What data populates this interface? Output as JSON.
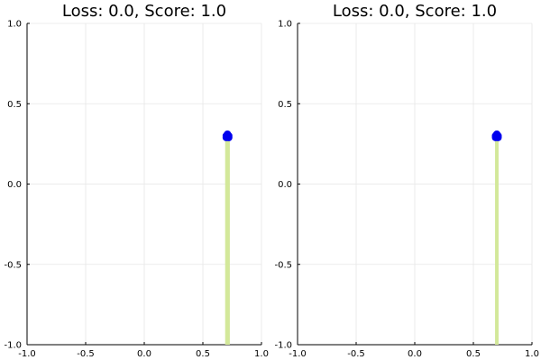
{
  "chart_data": [
    {
      "type": "scatter",
      "title": "Loss: 0.0, Score: 1.0",
      "xlim": [
        -1.0,
        1.0
      ],
      "ylim": [
        -1.0,
        1.0
      ],
      "xticks": [
        "-1.0",
        "-0.5",
        "0.0",
        "0.5",
        "1.0"
      ],
      "yticks": [
        "-1.0",
        "-0.5",
        "0.0",
        "0.5",
        "1.0"
      ],
      "grid": true,
      "bar": {
        "x": 0.71,
        "width": 0.04,
        "from": -1.0,
        "to": 0.3,
        "color": "#d3e89a"
      },
      "points": [
        {
          "x": 0.7,
          "y": 0.3
        },
        {
          "x": 0.72,
          "y": 0.3
        },
        {
          "x": 0.71,
          "y": 0.31
        },
        {
          "x": 0.7,
          "y": 0.29
        },
        {
          "x": 0.72,
          "y": 0.29
        },
        {
          "x": 0.71,
          "y": 0.3
        }
      ],
      "point_color": "#0000ee"
    },
    {
      "type": "scatter",
      "title": "Loss: 0.0, Score: 1.0",
      "xlim": [
        -1.0,
        1.0
      ],
      "ylim": [
        -1.0,
        1.0
      ],
      "xticks": [
        "-1.0",
        "-0.5",
        "0.0",
        "0.5",
        "1.0"
      ],
      "yticks": [
        "-1.0",
        "-0.5",
        "0.0",
        "0.5",
        "1.0"
      ],
      "grid": true,
      "bar": {
        "x": 0.7,
        "width": 0.03,
        "from": -1.0,
        "to": 0.3,
        "color": "#d3e89a"
      },
      "points": [
        {
          "x": 0.69,
          "y": 0.3
        },
        {
          "x": 0.71,
          "y": 0.3
        },
        {
          "x": 0.7,
          "y": 0.31
        },
        {
          "x": 0.69,
          "y": 0.29
        },
        {
          "x": 0.71,
          "y": 0.29
        }
      ],
      "point_color": "#0000ee"
    }
  ]
}
